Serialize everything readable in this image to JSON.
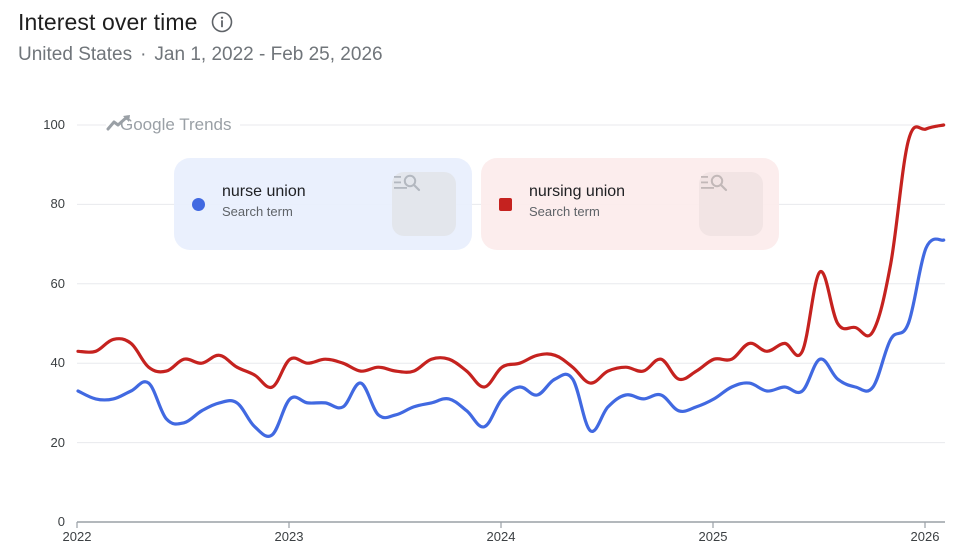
{
  "header": {
    "title": "Interest over time",
    "info_icon": "info-icon",
    "region": "United States",
    "separator": "·",
    "date_range": "Jan 1, 2022 - Feb 25, 2026"
  },
  "watermark": {
    "icon": "trending-icon",
    "label": "Google Trends"
  },
  "legend": [
    {
      "term": "nurse union",
      "subtitle": "Search term",
      "marker": "circle",
      "color": "#4169e1",
      "action_icon": "explore-search-icon"
    },
    {
      "term": "nursing union",
      "subtitle": "Search term",
      "marker": "square",
      "color": "#c5221f",
      "action_icon": "explore-search-icon"
    }
  ],
  "axes": {
    "y_ticks": [
      "100",
      "80",
      "60",
      "40",
      "20",
      "0"
    ],
    "x_ticks": [
      "2022",
      "2023",
      "2024",
      "2025",
      "2026"
    ]
  },
  "chart_data": {
    "type": "line",
    "title": "Interest over time",
    "subtitle": "United States · Jan 1, 2022 - Feb 25, 2026",
    "xlabel": "",
    "ylabel": "",
    "ylim": [
      0,
      100
    ],
    "y_ticks": [
      0,
      20,
      40,
      60,
      80,
      100
    ],
    "x_ticks": [
      "2022",
      "2023",
      "2024",
      "2025",
      "2026"
    ],
    "grid": true,
    "legend_position": "top-inset",
    "x": [
      "2022-01",
      "2022-02",
      "2022-03",
      "2022-04",
      "2022-05",
      "2022-06",
      "2022-07",
      "2022-08",
      "2022-09",
      "2022-10",
      "2022-11",
      "2022-12",
      "2023-01",
      "2023-02",
      "2023-03",
      "2023-04",
      "2023-05",
      "2023-06",
      "2023-07",
      "2023-08",
      "2023-09",
      "2023-10",
      "2023-11",
      "2023-12",
      "2024-01",
      "2024-02",
      "2024-03",
      "2024-04",
      "2024-05",
      "2024-06",
      "2024-07",
      "2024-08",
      "2024-09",
      "2024-10",
      "2024-11",
      "2024-12",
      "2025-01",
      "2025-02",
      "2025-03",
      "2025-04",
      "2025-05",
      "2025-06",
      "2025-07",
      "2025-08",
      "2025-09",
      "2025-10",
      "2025-11",
      "2025-12",
      "2026-01",
      "2026-02"
    ],
    "series": [
      {
        "name": "nurse union",
        "color": "#4169e1",
        "values": [
          33,
          31,
          31,
          33,
          35,
          26,
          25,
          28,
          30,
          30,
          24,
          22,
          31,
          30,
          30,
          29,
          35,
          27,
          27,
          29,
          30,
          31,
          28,
          24,
          31,
          34,
          32,
          36,
          36,
          23,
          29,
          32,
          31,
          32,
          28,
          29,
          31,
          34,
          35,
          33,
          34,
          33,
          41,
          36,
          34,
          34,
          46,
          50,
          69,
          71
        ]
      },
      {
        "name": "nursing union",
        "color": "#c5221f",
        "values": [
          43,
          43,
          46,
          45,
          39,
          38,
          41,
          40,
          42,
          39,
          37,
          34,
          41,
          40,
          41,
          40,
          38,
          39,
          38,
          38,
          41,
          41,
          38,
          34,
          39,
          40,
          42,
          42,
          39,
          35,
          38,
          39,
          38,
          41,
          36,
          38,
          41,
          41,
          45,
          43,
          45,
          43,
          63,
          50,
          49,
          48,
          65,
          96,
          99,
          100
        ]
      }
    ]
  }
}
